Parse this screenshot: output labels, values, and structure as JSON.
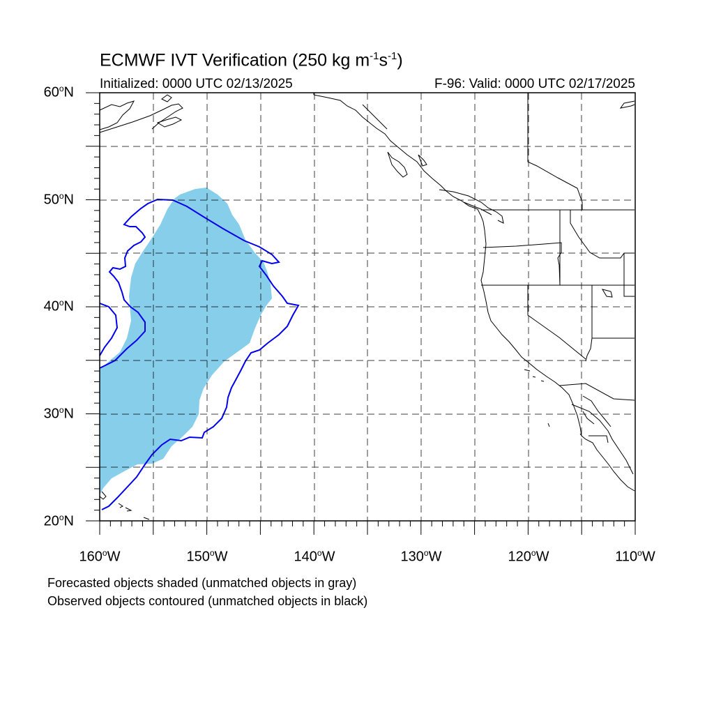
{
  "title": {
    "main": "ECMWF IVT Verification (250 kg m",
    "exp1": "-1",
    "mid": "s",
    "exp2": "-1",
    "end": ")"
  },
  "subtitle_left": "Initialized: 0000 UTC 02/13/2025",
  "subtitle_right": "F-96: Valid: 0000 UTC 02/17/2025",
  "map": {
    "lon_range": [
      -160,
      -110
    ],
    "lat_range": [
      20,
      60
    ],
    "grid": "dashed every 5°",
    "y_ticks": [
      {
        "num": "60",
        "deg": "o",
        "hem": "N"
      },
      {
        "num": "50",
        "deg": "o",
        "hem": "N"
      },
      {
        "num": "40",
        "deg": "o",
        "hem": "N"
      },
      {
        "num": "30",
        "deg": "o",
        "hem": "N"
      },
      {
        "num": "20",
        "deg": "o",
        "hem": "N"
      }
    ],
    "x_ticks": [
      {
        "num": "160",
        "deg": "o",
        "hem": "W"
      },
      {
        "num": "150",
        "deg": "o",
        "hem": "W"
      },
      {
        "num": "140",
        "deg": "o",
        "hem": "W"
      },
      {
        "num": "130",
        "deg": "o",
        "hem": "W"
      },
      {
        "num": "120",
        "deg": "o",
        "hem": "W"
      },
      {
        "num": "110",
        "deg": "o",
        "hem": "W"
      }
    ],
    "colors": {
      "forecast_fill": "#87ceeb",
      "observed_contour": "#0000ee",
      "coastline": "#000000"
    }
  },
  "notes": [
    "Forecasted objects shaded (unmatched objects in gray)",
    "Observed objects contoured (unmatched objects in black)"
  ]
}
